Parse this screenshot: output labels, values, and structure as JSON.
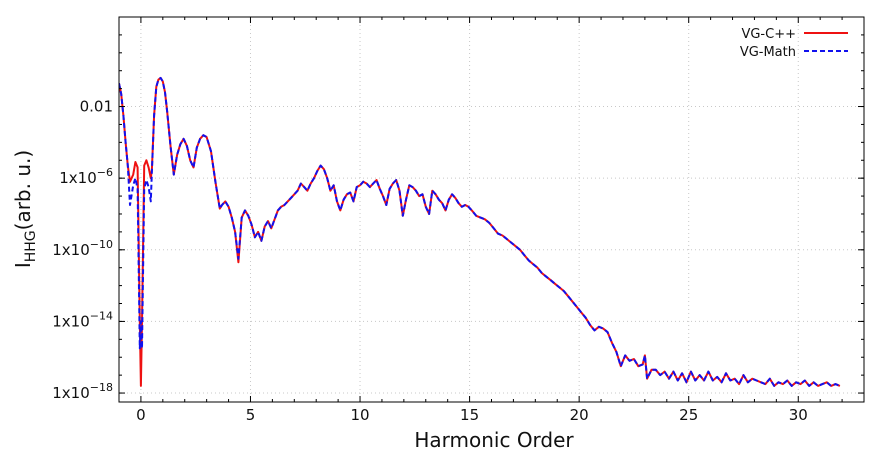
{
  "chart_data": {
    "type": "line",
    "xlabel": "Harmonic Order",
    "ylabel_main": "I",
    "ylabel_sub": "HHG",
    "ylabel_tail": "(arb. u.)",
    "xlim": [
      -1,
      33
    ],
    "ylim_log10": [
      -18.5,
      3.0
    ],
    "y_scale": "log",
    "grid": true,
    "legend_position": "top-right",
    "x_ticks": [
      {
        "value": 0,
        "label": "0"
      },
      {
        "value": 5,
        "label": "5"
      },
      {
        "value": 10,
        "label": "10"
      },
      {
        "value": 15,
        "label": "15"
      },
      {
        "value": 20,
        "label": "20"
      },
      {
        "value": 25,
        "label": "25"
      },
      {
        "value": 30,
        "label": "30"
      }
    ],
    "y_ticks": [
      {
        "log10": -2,
        "base": "0.01",
        "exp": ""
      },
      {
        "log10": -6,
        "base": "1x10",
        "exp": "−6"
      },
      {
        "log10": -10,
        "base": "1x10",
        "exp": "−10"
      },
      {
        "log10": -14,
        "base": "1x10",
        "exp": "−14"
      },
      {
        "log10": -18,
        "base": "1x10",
        "exp": "−18"
      }
    ],
    "x": [
      -1.0,
      -0.9,
      -0.8,
      -0.7,
      -0.6,
      -0.5,
      -0.35,
      -0.25,
      -0.15,
      -0.05,
      0.0,
      0.05,
      0.15,
      0.25,
      0.35,
      0.45,
      0.5,
      0.6,
      0.7,
      0.8,
      0.9,
      1.0,
      1.1,
      1.2,
      1.35,
      1.5,
      1.65,
      1.8,
      1.95,
      2.1,
      2.25,
      2.4,
      2.55,
      2.7,
      2.85,
      3.0,
      3.2,
      3.4,
      3.6,
      3.7,
      3.85,
      4.0,
      4.15,
      4.3,
      4.45,
      4.6,
      4.75,
      4.9,
      5.05,
      5.2,
      5.35,
      5.5,
      5.65,
      5.8,
      5.95,
      6.1,
      6.25,
      6.4,
      6.55,
      6.7,
      6.85,
      7.0,
      7.15,
      7.3,
      7.45,
      7.6,
      7.75,
      7.9,
      8.05,
      8.2,
      8.35,
      8.5,
      8.65,
      8.8,
      8.95,
      9.1,
      9.25,
      9.4,
      9.55,
      9.7,
      9.85,
      10.0,
      10.15,
      10.3,
      10.45,
      10.6,
      10.75,
      10.9,
      11.05,
      11.2,
      11.35,
      11.5,
      11.65,
      11.8,
      11.95,
      12.1,
      12.25,
      12.4,
      12.55,
      12.7,
      12.85,
      13.0,
      13.15,
      13.3,
      13.45,
      13.6,
      13.75,
      13.9,
      14.05,
      14.2,
      14.35,
      14.5,
      14.65,
      14.8,
      14.95,
      15.1,
      15.3,
      15.5,
      15.7,
      15.9,
      16.1,
      16.3,
      16.5,
      16.7,
      16.9,
      17.1,
      17.3,
      17.5,
      17.7,
      17.9,
      18.1,
      18.3,
      18.5,
      18.7,
      18.9,
      19.1,
      19.3,
      19.5,
      19.7,
      19.9,
      20.1,
      20.3,
      20.5,
      20.7,
      20.9,
      21.1,
      21.3,
      21.5,
      21.7,
      21.9,
      22.1,
      22.3,
      22.5,
      22.7,
      22.9,
      23.0,
      23.1,
      23.3,
      23.5,
      23.7,
      23.9,
      24.1,
      24.3,
      24.5,
      24.7,
      24.9,
      25.1,
      25.3,
      25.5,
      25.7,
      25.9,
      26.1,
      26.3,
      26.5,
      26.7,
      26.9,
      27.1,
      27.3,
      27.5,
      27.7,
      27.9,
      28.1,
      28.3,
      28.5,
      28.7,
      28.9,
      29.1,
      29.3,
      29.5,
      29.7,
      29.9,
      30.1,
      30.3,
      30.5,
      30.7,
      30.9,
      31.1,
      31.3,
      31.5,
      31.7,
      31.9,
      32.1,
      32.3,
      32.5,
      32.7,
      33.0
    ],
    "series": [
      {
        "name": "VG-C++",
        "color": "#ee1111",
        "style": "solid",
        "y_log10": [
          -0.7,
          -1.3,
          -2.5,
          -4.0,
          -5.3,
          -6.2,
          -5.8,
          -5.1,
          -5.4,
          -14.0,
          -17.6,
          -14.0,
          -5.3,
          -5.0,
          -5.4,
          -6.0,
          -5.5,
          -2.5,
          -0.9,
          -0.5,
          -0.4,
          -0.6,
          -1.2,
          -2.3,
          -4.2,
          -5.8,
          -4.7,
          -4.1,
          -3.8,
          -4.2,
          -5.0,
          -5.4,
          -4.3,
          -3.8,
          -3.6,
          -3.7,
          -4.5,
          -6.2,
          -7.7,
          -7.5,
          -7.3,
          -7.6,
          -8.2,
          -9.0,
          -10.7,
          -8.2,
          -7.8,
          -8.1,
          -8.6,
          -9.3,
          -9.0,
          -9.5,
          -8.7,
          -8.4,
          -8.8,
          -8.3,
          -7.8,
          -7.6,
          -7.5,
          -7.3,
          -7.1,
          -6.9,
          -6.7,
          -6.3,
          -6.5,
          -6.7,
          -6.3,
          -6.0,
          -5.6,
          -5.3,
          -5.5,
          -6.0,
          -6.7,
          -6.4,
          -7.3,
          -7.8,
          -7.2,
          -6.9,
          -6.8,
          -7.3,
          -6.5,
          -6.4,
          -6.2,
          -6.3,
          -6.5,
          -6.3,
          -6.1,
          -6.6,
          -7.0,
          -7.5,
          -6.6,
          -6.3,
          -6.1,
          -6.7,
          -8.1,
          -7.2,
          -6.4,
          -6.5,
          -6.7,
          -7.0,
          -6.9,
          -7.6,
          -8.0,
          -6.7,
          -6.9,
          -7.2,
          -7.4,
          -7.8,
          -7.2,
          -6.9,
          -7.1,
          -7.4,
          -7.6,
          -7.5,
          -7.6,
          -7.8,
          -8.1,
          -8.2,
          -8.3,
          -8.5,
          -8.8,
          -9.1,
          -9.2,
          -9.4,
          -9.6,
          -9.8,
          -10.0,
          -10.3,
          -10.6,
          -10.8,
          -11.0,
          -11.3,
          -11.5,
          -11.7,
          -11.9,
          -12.1,
          -12.3,
          -12.6,
          -12.9,
          -13.2,
          -13.5,
          -13.8,
          -14.2,
          -14.5,
          -14.3,
          -14.4,
          -14.6,
          -15.2,
          -15.7,
          -16.5,
          -15.9,
          -16.2,
          -16.1,
          -16.5,
          -16.4,
          -15.9,
          -17.2,
          -16.7,
          -16.7,
          -17.0,
          -16.8,
          -17.2,
          -16.8,
          -17.3,
          -16.9,
          -17.4,
          -16.8,
          -17.3,
          -17.0,
          -17.3,
          -16.8,
          -17.3,
          -17.1,
          -17.4,
          -16.9,
          -17.3,
          -17.2,
          -17.5,
          -17.0,
          -17.4,
          -17.2,
          -17.3,
          -17.4,
          -17.5,
          -17.2,
          -17.6,
          -17.4,
          -17.5,
          -17.3,
          -17.6,
          -17.4,
          -17.5,
          -17.3,
          -17.6,
          -17.4,
          -17.6,
          -17.5,
          -17.4,
          -17.6,
          -17.5,
          -17.6
        ]
      },
      {
        "name": "VG-Math",
        "color": "#1111ee",
        "style": "dashed",
        "y_log10": [
          -0.7,
          -1.3,
          -2.5,
          -4.0,
          -5.3,
          -7.5,
          -6.4,
          -6.0,
          -6.6,
          -15.5,
          -14.0,
          -15.5,
          -6.6,
          -6.1,
          -6.5,
          -7.3,
          -5.6,
          -2.5,
          -0.9,
          -0.5,
          -0.4,
          -0.6,
          -1.2,
          -2.3,
          -4.2,
          -5.8,
          -4.7,
          -4.1,
          -3.8,
          -4.2,
          -5.0,
          -5.4,
          -4.3,
          -3.8,
          -3.6,
          -3.7,
          -4.5,
          -6.2,
          -7.7,
          -7.5,
          -7.3,
          -7.6,
          -8.2,
          -9.0,
          -10.5,
          -8.2,
          -7.8,
          -8.1,
          -8.6,
          -9.3,
          -9.0,
          -9.5,
          -8.7,
          -8.4,
          -8.8,
          -8.3,
          -7.8,
          -7.6,
          -7.5,
          -7.3,
          -7.1,
          -6.9,
          -6.7,
          -6.3,
          -6.5,
          -6.7,
          -6.3,
          -6.0,
          -5.6,
          -5.3,
          -5.5,
          -6.0,
          -6.7,
          -6.4,
          -7.3,
          -7.8,
          -7.2,
          -6.9,
          -6.8,
          -7.3,
          -6.5,
          -6.4,
          -6.2,
          -6.3,
          -6.5,
          -6.3,
          -6.1,
          -6.6,
          -7.0,
          -7.5,
          -6.6,
          -6.3,
          -6.1,
          -6.7,
          -8.1,
          -7.2,
          -6.4,
          -6.5,
          -6.7,
          -7.0,
          -6.9,
          -7.6,
          -8.0,
          -6.7,
          -6.9,
          -7.2,
          -7.4,
          -7.8,
          -7.2,
          -6.9,
          -7.1,
          -7.4,
          -7.6,
          -7.5,
          -7.6,
          -7.8,
          -8.1,
          -8.2,
          -8.3,
          -8.5,
          -8.8,
          -9.1,
          -9.2,
          -9.4,
          -9.6,
          -9.8,
          -10.0,
          -10.3,
          -10.6,
          -10.8,
          -11.0,
          -11.3,
          -11.5,
          -11.7,
          -11.9,
          -12.1,
          -12.3,
          -12.6,
          -12.9,
          -13.2,
          -13.5,
          -13.8,
          -14.2,
          -14.5,
          -14.3,
          -14.4,
          -14.6,
          -15.2,
          -15.7,
          -16.5,
          -15.9,
          -16.2,
          -16.1,
          -16.5,
          -16.4,
          -15.9,
          -17.2,
          -16.7,
          -16.7,
          -17.0,
          -16.8,
          -17.2,
          -16.8,
          -17.3,
          -16.9,
          -17.4,
          -16.8,
          -17.3,
          -17.0,
          -17.3,
          -16.8,
          -17.3,
          -17.1,
          -17.4,
          -16.9,
          -17.3,
          -17.2,
          -17.5,
          -17.0,
          -17.4,
          -17.2,
          -17.3,
          -17.4,
          -17.5,
          -17.2,
          -17.6,
          -17.4,
          -17.5,
          -17.3,
          -17.6,
          -17.4,
          -17.5,
          -17.3,
          -17.6,
          -17.4,
          -17.6,
          -17.5,
          -17.4,
          -17.6,
          -17.5,
          -17.6
        ]
      }
    ]
  }
}
